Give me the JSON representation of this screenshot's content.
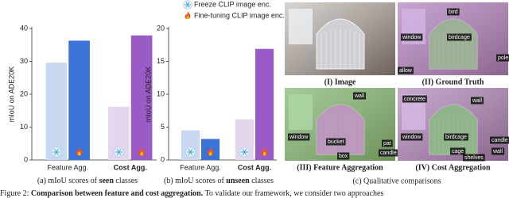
{
  "legend": [
    "Freeze CLIP image enc.",
    "Fine-tuning CLIP image enc."
  ],
  "chart_data": [
    {
      "type": "bar",
      "ylabel": "mIoU on ADE20K",
      "categories": [
        "Feature Agg.",
        "Cost Agg."
      ],
      "series": [
        {
          "colors": [
            "#c8d8f0",
            "#e3d7ee"
          ],
          "values": [
            29.6,
            16.2
          ]
        },
        {
          "colors": [
            "#3b72d8",
            "#9b5bc6"
          ],
          "values": [
            36.3,
            37.9
          ]
        }
      ],
      "ylim": [
        0,
        40
      ],
      "yticks": [
        0,
        10,
        20,
        30,
        40
      ],
      "caption": {
        "before": "(a) mIoU scores of",
        "bold": "seen",
        "after": "classes"
      }
    },
    {
      "type": "bar",
      "ylabel": "mIoU on ADE20K",
      "categories": [
        "Feature Agg.",
        "Cost Agg."
      ],
      "series": [
        {
          "colors": [
            "#c8d8f0",
            "#e3d7ee"
          ],
          "values": [
            4.5,
            6.2
          ]
        },
        {
          "colors": [
            "#3b72d8",
            "#9b5bc6"
          ],
          "values": [
            3.2,
            16.9
          ]
        }
      ],
      "ylim": [
        0,
        20
      ],
      "yticks": [
        0,
        5,
        10,
        15,
        20
      ],
      "caption": {
        "before": "(b) mIoU scores of",
        "bold": "unseen",
        "after": "classes"
      }
    }
  ],
  "panel_c": {
    "images": [
      {
        "caption": "(I) Image",
        "labels": []
      },
      {
        "caption": "(II) Ground Truth",
        "labels": [
          "bird",
          "window",
          "birdcage",
          "pole",
          "allow"
        ]
      },
      {
        "caption": "(III) Feature Aggregation",
        "labels": [
          "wall",
          "window",
          "bucket",
          "pat",
          "candle",
          "box"
        ]
      },
      {
        "caption": "(IV) Cost Aggregation",
        "labels": [
          "concrete",
          "wall",
          "window",
          "birdcage",
          "candle",
          "wall",
          "cage",
          "shelves"
        ]
      }
    ],
    "caption": "(c) Qualitative comparisons"
  },
  "figure_caption": {
    "label": "Figure 2:",
    "bold": "Comparison between feature and cost aggregation.",
    "rest": "To validate our framework, we consider two approaches"
  }
}
